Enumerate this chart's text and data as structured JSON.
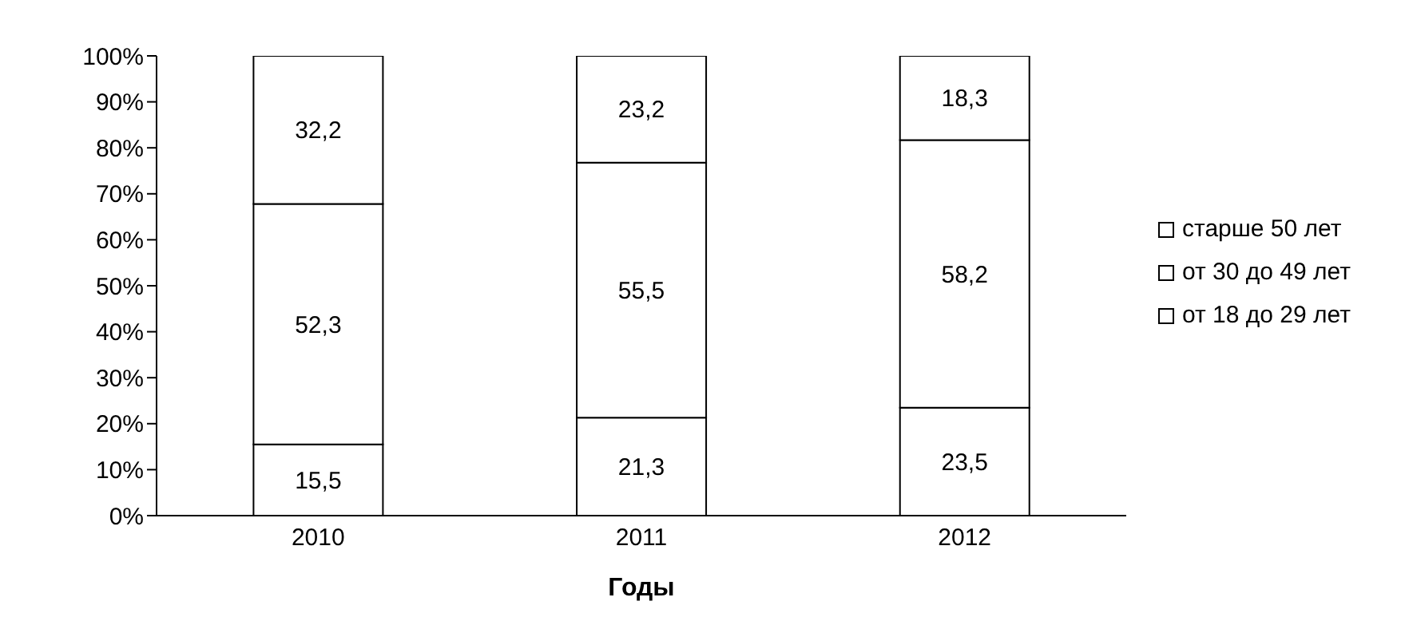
{
  "chart_data": {
    "type": "bar",
    "stacked": true,
    "xlabel": "Годы",
    "categories": [
      "2010",
      "2011",
      "2012"
    ],
    "series": [
      {
        "name": "от 18 до 29 лет",
        "color": "#ffffff",
        "values": [
          15.5,
          21.3,
          23.5
        ],
        "value_labels": [
          "15,5",
          "21,3",
          "23,5"
        ]
      },
      {
        "name": "от 30 до 49 лет",
        "color": "#ffffff",
        "values": [
          52.3,
          55.5,
          58.2
        ],
        "value_labels": [
          "52,3",
          "55,5",
          "58,2"
        ]
      },
      {
        "name": "старше 50 лет",
        "color": "#ffffff",
        "values": [
          32.2,
          23.2,
          18.3
        ],
        "value_labels": [
          "32,2",
          "23,2",
          "18,3"
        ]
      }
    ],
    "ylim": [
      0,
      100
    ],
    "yticks": [
      {
        "value": 0,
        "label": "0%"
      },
      {
        "value": 10,
        "label": "10%"
      },
      {
        "value": 20,
        "label": "20%"
      },
      {
        "value": 30,
        "label": "30%"
      },
      {
        "value": 40,
        "label": "40%"
      },
      {
        "value": 50,
        "label": "50%"
      },
      {
        "value": 60,
        "label": "60%"
      },
      {
        "value": 70,
        "label": "70%"
      },
      {
        "value": 80,
        "label": "80%"
      },
      {
        "value": 90,
        "label": "90%"
      },
      {
        "value": 100,
        "label": "100%"
      }
    ],
    "grid": false,
    "legend": "right"
  }
}
